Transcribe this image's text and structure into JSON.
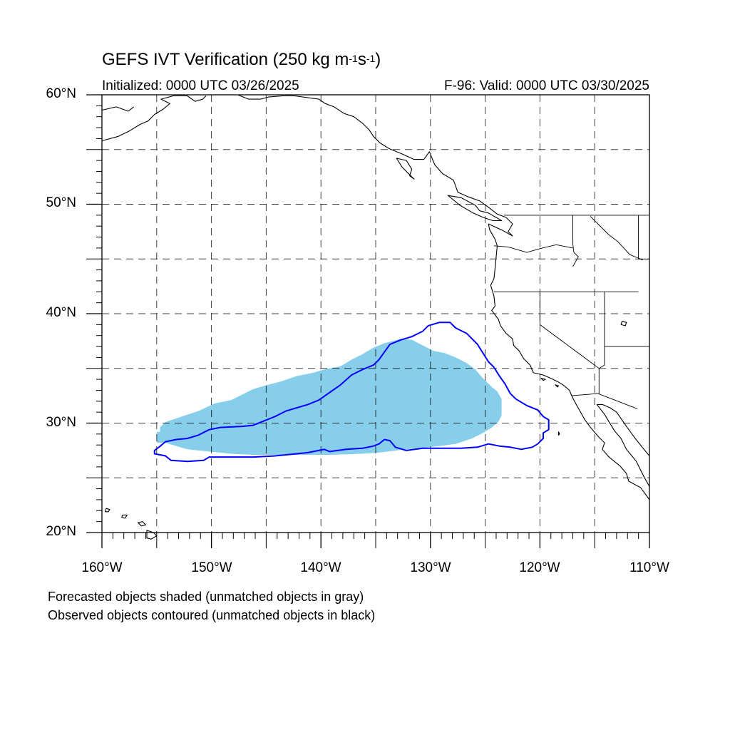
{
  "title": {
    "main": "GEFS IVT Verification (250 kg m",
    "sup1": "-1",
    "mid": "s",
    "sup2": "-1",
    "end": ")"
  },
  "subtitle_left": "Initialized: 0000 UTC 03/26/2025",
  "subtitle_right": "F-96: Valid: 0000 UTC 03/30/2025",
  "map": {
    "lon_range": [
      -160,
      -110
    ],
    "lat_range": [
      20,
      60
    ],
    "grid": "dashed",
    "projection": "cylindrical equidistant",
    "lat_labels": [
      "20°N",
      "30°N",
      "40°N",
      "50°N",
      "60°N"
    ],
    "lon_labels": [
      "160°W",
      "150°W",
      "140°W",
      "130°W",
      "120°W",
      "110°W"
    ]
  },
  "legend_notes": [
    "Forecasted objects shaded (unmatched objects in gray)",
    "Observed objects contoured (unmatched objects in black)"
  ],
  "objects": {
    "forecast": {
      "color": "#87ceeb",
      "matched": true,
      "outline": [
        [
          -154.7,
          29.6
        ],
        [
          -154.7,
          29.2
        ],
        [
          -155,
          29.2
        ],
        [
          -155,
          28.2
        ],
        [
          -154.2,
          28.2
        ],
        [
          -152.2,
          27.6
        ],
        [
          -150.2,
          27.4
        ],
        [
          -148.2,
          27.2
        ],
        [
          -146.2,
          27.1
        ],
        [
          -143.2,
          27.1
        ],
        [
          -139.2,
          27.1
        ],
        [
          -136.2,
          27.2
        ],
        [
          -134.7,
          27.3
        ],
        [
          -132.2,
          27.6
        ],
        [
          -129.2,
          27.9
        ],
        [
          -127.7,
          28.1
        ],
        [
          -126.2,
          28.6
        ],
        [
          -125.2,
          29.1
        ],
        [
          -124.4,
          29.6
        ],
        [
          -123.8,
          30.1
        ],
        [
          -123.5,
          30.7
        ],
        [
          -123.5,
          32.2
        ],
        [
          -123.9,
          32.9
        ],
        [
          -124.4,
          33.3
        ],
        [
          -125.2,
          34.1
        ],
        [
          -125.9,
          34.9
        ],
        [
          -126.7,
          35.5
        ],
        [
          -127.7,
          36
        ],
        [
          -128.7,
          36.4
        ],
        [
          -129.7,
          36.6
        ],
        [
          -130.7,
          37.1
        ],
        [
          -131.7,
          37.6
        ],
        [
          -132.7,
          37.7
        ],
        [
          -134.2,
          37.3
        ],
        [
          -135.2,
          36.9
        ],
        [
          -136.2,
          36.3
        ],
        [
          -137.2,
          35.8
        ],
        [
          -138.2,
          35.2
        ],
        [
          -139.7,
          34.9
        ],
        [
          -140.7,
          34.6
        ],
        [
          -142.2,
          34.3
        ],
        [
          -143.7,
          33.8
        ],
        [
          -145.2,
          33.4
        ],
        [
          -146.2,
          33.1
        ],
        [
          -147.2,
          32.6
        ],
        [
          -148.2,
          32.1
        ],
        [
          -149.7,
          31.8
        ],
        [
          -151.2,
          31.1
        ],
        [
          -152.7,
          30.6
        ],
        [
          -154.2,
          30.1
        ]
      ]
    },
    "observed": {
      "color": "#0000ff",
      "matched": true,
      "outline": [
        [
          -155.2,
          27.5
        ],
        [
          -154.8,
          27.8
        ],
        [
          -154.2,
          28.3
        ],
        [
          -153.2,
          28.5
        ],
        [
          -152.2,
          28.6
        ],
        [
          -151.2,
          28.9
        ],
        [
          -150.2,
          29.4
        ],
        [
          -149.2,
          29.6
        ],
        [
          -147.2,
          29.7
        ],
        [
          -146.2,
          29.8
        ],
        [
          -145.2,
          30.2
        ],
        [
          -144.2,
          30.6
        ],
        [
          -143.2,
          31.1
        ],
        [
          -142.2,
          31.4
        ],
        [
          -141.2,
          31.7
        ],
        [
          -140.2,
          32.1
        ],
        [
          -139.2,
          32.8
        ],
        [
          -138.2,
          33.5
        ],
        [
          -137.2,
          34.4
        ],
        [
          -136.2,
          34.9
        ],
        [
          -135.2,
          35.3
        ],
        [
          -134.7,
          35.8
        ],
        [
          -134.2,
          36.5
        ],
        [
          -133.7,
          37.2
        ],
        [
          -132.7,
          37.6
        ],
        [
          -131.7,
          37.9
        ],
        [
          -130.7,
          38.4
        ],
        [
          -130.2,
          38.9
        ],
        [
          -129.2,
          39.2
        ],
        [
          -128.2,
          39.2
        ],
        [
          -127.7,
          38.7
        ],
        [
          -126.7,
          38.2
        ],
        [
          -125.7,
          37.2
        ],
        [
          -125.2,
          36.4
        ],
        [
          -124.7,
          35.6
        ],
        [
          -124.2,
          35.1
        ],
        [
          -123.7,
          34.3
        ],
        [
          -123.2,
          33.6
        ],
        [
          -122.7,
          32.7
        ],
        [
          -122.2,
          32.2
        ],
        [
          -121.2,
          31.6
        ],
        [
          -120.2,
          31.2
        ],
        [
          -119.7,
          30.6
        ],
        [
          -119.2,
          30.3
        ],
        [
          -119.2,
          29.4
        ],
        [
          -119.7,
          29.1
        ],
        [
          -119.7,
          28.6
        ],
        [
          -120.2,
          28.1
        ],
        [
          -120.7,
          27.8
        ],
        [
          -121.7,
          27.6
        ],
        [
          -122.7,
          27.8
        ],
        [
          -123.7,
          27.9
        ],
        [
          -124.7,
          28.1
        ],
        [
          -125.7,
          27.8
        ],
        [
          -127.2,
          27.7
        ],
        [
          -128.7,
          27.7
        ],
        [
          -130.7,
          27.7
        ],
        [
          -132.2,
          27.5
        ],
        [
          -133.2,
          27.8
        ],
        [
          -133.7,
          28.4
        ],
        [
          -134.2,
          28.5
        ],
        [
          -134.7,
          28.1
        ],
        [
          -135.2,
          27.9
        ],
        [
          -136.2,
          27.7
        ],
        [
          -137.7,
          27.6
        ],
        [
          -139.2,
          27.4
        ],
        [
          -139.7,
          27.6
        ],
        [
          -140.2,
          27.5
        ],
        [
          -141.2,
          27.3
        ],
        [
          -142.2,
          27.2
        ],
        [
          -144.2,
          27
        ],
        [
          -146.2,
          26.9
        ],
        [
          -148.2,
          26.9
        ],
        [
          -150.2,
          26.9
        ],
        [
          -150.7,
          26.6
        ],
        [
          -152.2,
          26.5
        ],
        [
          -153.7,
          26.6
        ],
        [
          -154.2,
          27
        ],
        [
          -155.2,
          27.2
        ]
      ]
    }
  },
  "land_lines": {
    "color": "#000000",
    "coast": [
      [
        [
          -160,
          55.8
        ],
        [
          -158.5,
          56.2
        ],
        [
          -157.5,
          56.7
        ],
        [
          -156.5,
          57.3
        ],
        [
          -155.8,
          57.6
        ],
        [
          -155.2,
          58.2
        ],
        [
          -154.4,
          58.7
        ],
        [
          -153.8,
          59.2
        ],
        [
          -154.6,
          59.6
        ],
        [
          -153.5,
          59.9
        ],
        [
          -152.2,
          59.9
        ],
        [
          -151.5,
          59.4
        ],
        [
          -150.8,
          59.6
        ],
        [
          -150.5,
          59.9
        ]
      ],
      [
        [
          -160,
          58.6
        ],
        [
          -158.7,
          58.9
        ],
        [
          -157.6,
          58.5
        ],
        [
          -157.1,
          58.9
        ]
      ],
      [
        [
          -147.6,
          60
        ],
        [
          -146.6,
          59.6
        ],
        [
          -145.5,
          59.6
        ],
        [
          -144.8,
          59.8
        ],
        [
          -143.5,
          59.9
        ],
        [
          -142.4,
          59.9
        ],
        [
          -140.2,
          59.6
        ],
        [
          -139.6,
          59.2
        ],
        [
          -138.8,
          58.9
        ],
        [
          -137.9,
          58.3
        ],
        [
          -137,
          58
        ],
        [
          -136.2,
          57.4
        ],
        [
          -135.6,
          56.8
        ],
        [
          -135.2,
          56.2
        ],
        [
          -134.6,
          55.6
        ],
        [
          -133.8,
          55.1
        ],
        [
          -132.6,
          54.6
        ],
        [
          -131.5,
          54.1
        ],
        [
          -130.6,
          54.1
        ],
        [
          -130.1,
          54.8
        ],
        [
          -129.6,
          53.6
        ],
        [
          -128.9,
          52.8
        ],
        [
          -127.9,
          52.2
        ],
        [
          -127.5,
          51.1
        ],
        [
          -126.6,
          50.7
        ],
        [
          -125.5,
          50.3
        ],
        [
          -124.8,
          49.8
        ],
        [
          -123.9,
          49.1
        ],
        [
          -123.1,
          48.8
        ],
        [
          -122.5,
          48.2
        ],
        [
          -122.9,
          47.5
        ],
        [
          -122.5,
          47.1
        ],
        [
          -123.4,
          47.6
        ],
        [
          -124.7,
          48.2
        ],
        [
          -124.6,
          47.7
        ],
        [
          -124.1,
          46.8
        ],
        [
          -123.9,
          46.2
        ],
        [
          -124,
          45.2
        ],
        [
          -124.1,
          44.1
        ],
        [
          -124.2,
          43.2
        ],
        [
          -124.5,
          42.6
        ],
        [
          -124.2,
          41.6
        ],
        [
          -124.1,
          40.7
        ],
        [
          -124.4,
          40.3
        ],
        [
          -123.8,
          39.5
        ],
        [
          -123.6,
          38.9
        ],
        [
          -123.1,
          38.2
        ],
        [
          -122.5,
          37.7
        ],
        [
          -122.4,
          37.1
        ],
        [
          -121.9,
          36.6
        ],
        [
          -121.5,
          35.9
        ],
        [
          -120.9,
          35.3
        ],
        [
          -120.6,
          34.6
        ],
        [
          -119.7,
          34.4
        ],
        [
          -118.8,
          34
        ],
        [
          -118.4,
          33.8
        ],
        [
          -117.9,
          33.5
        ],
        [
          -117.3,
          33
        ],
        [
          -117.1,
          32.5
        ],
        [
          -116.8,
          31.9
        ],
        [
          -116.4,
          31.2
        ],
        [
          -115.9,
          30.3
        ],
        [
          -115.3,
          29.5
        ],
        [
          -114.6,
          28.7
        ],
        [
          -114.1,
          28.2
        ],
        [
          -114.3,
          27.6
        ],
        [
          -113.7,
          26.9
        ],
        [
          -112.7,
          26.1
        ],
        [
          -112.1,
          25.4
        ],
        [
          -111.9,
          24.7
        ],
        [
          -110.8,
          24.1
        ],
        [
          -110,
          23
        ]
      ],
      [
        [
          -114.8,
          31.7
        ],
        [
          -114.1,
          30.8
        ],
        [
          -113.2,
          29.3
        ],
        [
          -112.6,
          28.6
        ],
        [
          -112.1,
          27.6
        ],
        [
          -111.2,
          26.5
        ],
        [
          -110.5,
          25.1
        ],
        [
          -110,
          24.2
        ]
      ],
      [
        [
          -110,
          27
        ],
        [
          -110.5,
          27.6
        ],
        [
          -111.3,
          28.6
        ],
        [
          -112.1,
          29.7
        ],
        [
          -113,
          31
        ],
        [
          -113.6,
          31.4
        ],
        [
          -114.3,
          31.7
        ],
        [
          -114.8,
          31.7
        ]
      ]
    ],
    "islands": [
      [
        [
          -133.1,
          54.2
        ],
        [
          -132.2,
          54
        ],
        [
          -131.7,
          53.2
        ],
        [
          -131.9,
          52.6
        ],
        [
          -131.5,
          52.3
        ],
        [
          -132.1,
          52.9
        ],
        [
          -132.6,
          53.4
        ],
        [
          -133.1,
          54.2
        ]
      ],
      [
        [
          -128.4,
          50.8
        ],
        [
          -127.2,
          50.6
        ],
        [
          -125.9,
          49.9
        ],
        [
          -125.5,
          49.4
        ],
        [
          -124.7,
          49.2
        ],
        [
          -123.5,
          48.5
        ],
        [
          -124.3,
          48.5
        ],
        [
          -125.2,
          48.8
        ],
        [
          -126.1,
          49.2
        ],
        [
          -127.3,
          49.9
        ],
        [
          -128.4,
          50.8
        ]
      ],
      [
        [
          -155.9,
          20.2
        ],
        [
          -155.3,
          20
        ],
        [
          -155,
          19.7
        ],
        [
          -155.5,
          19.4
        ],
        [
          -155.9,
          19.5
        ],
        [
          -155.9,
          20.2
        ]
      ],
      [
        [
          -156.7,
          20.9
        ],
        [
          -156.3,
          21
        ],
        [
          -156,
          20.7
        ],
        [
          -156.4,
          20.6
        ],
        [
          -156.7,
          20.9
        ]
      ],
      [
        [
          -157.7,
          21.6
        ],
        [
          -157.9,
          21.3
        ],
        [
          -158.2,
          21.4
        ],
        [
          -158.1,
          21.6
        ],
        [
          -157.7,
          21.6
        ]
      ],
      [
        [
          -159.6,
          22.2
        ],
        [
          -159.3,
          22.1
        ],
        [
          -159.4,
          21.9
        ],
        [
          -159.7,
          21.9
        ],
        [
          -159.6,
          22.2
        ]
      ],
      [
        [
          -118.6,
          33.5
        ],
        [
          -118.3,
          33.4
        ],
        [
          -118.4,
          33.3
        ],
        [
          -118.6,
          33.5
        ]
      ],
      [
        [
          -119.9,
          34.1
        ],
        [
          -119.5,
          34
        ],
        [
          -119.7,
          33.9
        ],
        [
          -119.9,
          34.1
        ]
      ],
      [
        [
          -118.3,
          29.2
        ],
        [
          -118.2,
          29
        ],
        [
          -118.3,
          28.9
        ],
        [
          -118.3,
          29.2
        ]
      ],
      [
        [
          -112.5,
          39.3
        ],
        [
          -112.1,
          39.2
        ],
        [
          -112.2,
          38.9
        ],
        [
          -112.6,
          39
        ],
        [
          -112.5,
          39.3
        ]
      ]
    ],
    "borders": [
      [
        [
          -123.3,
          49
        ],
        [
          -110,
          49
        ]
      ],
      [
        [
          -117,
          49
        ],
        [
          -117,
          46.4
        ],
        [
          -116.9,
          45.6
        ],
        [
          -116.5,
          45.2
        ],
        [
          -117,
          44.3
        ]
      ],
      [
        [
          -124.2,
          46.2
        ],
        [
          -122.9,
          46.1
        ],
        [
          -121.2,
          45.6
        ],
        [
          -119.8,
          46
        ],
        [
          -118.5,
          46.3
        ],
        [
          -117,
          46
        ]
      ],
      [
        [
          -124.2,
          42
        ],
        [
          -111,
          42
        ]
      ],
      [
        [
          -120,
          42
        ],
        [
          -120,
          39
        ],
        [
          -114.6,
          35
        ]
      ],
      [
        [
          -114.1,
          42
        ],
        [
          -114.1,
          35.3
        ],
        [
          -114.6,
          35
        ]
      ],
      [
        [
          -114.6,
          35
        ],
        [
          -114.6,
          32.7
        ]
      ],
      [
        [
          -117.1,
          32.5
        ],
        [
          -114.7,
          32.7
        ],
        [
          -111.1,
          31.3
        ]
      ],
      [
        [
          -111,
          45
        ],
        [
          -111,
          49
        ]
      ],
      [
        [
          -111,
          45
        ],
        [
          -110,
          45
        ]
      ],
      [
        [
          -114.1,
          37
        ],
        [
          -110,
          37
        ]
      ],
      [
        [
          -115.4,
          48.9
        ],
        [
          -113.7,
          47.2
        ],
        [
          -112.9,
          46.6
        ],
        [
          -111.8,
          45.4
        ],
        [
          -110.6,
          44.9
        ]
      ]
    ]
  }
}
